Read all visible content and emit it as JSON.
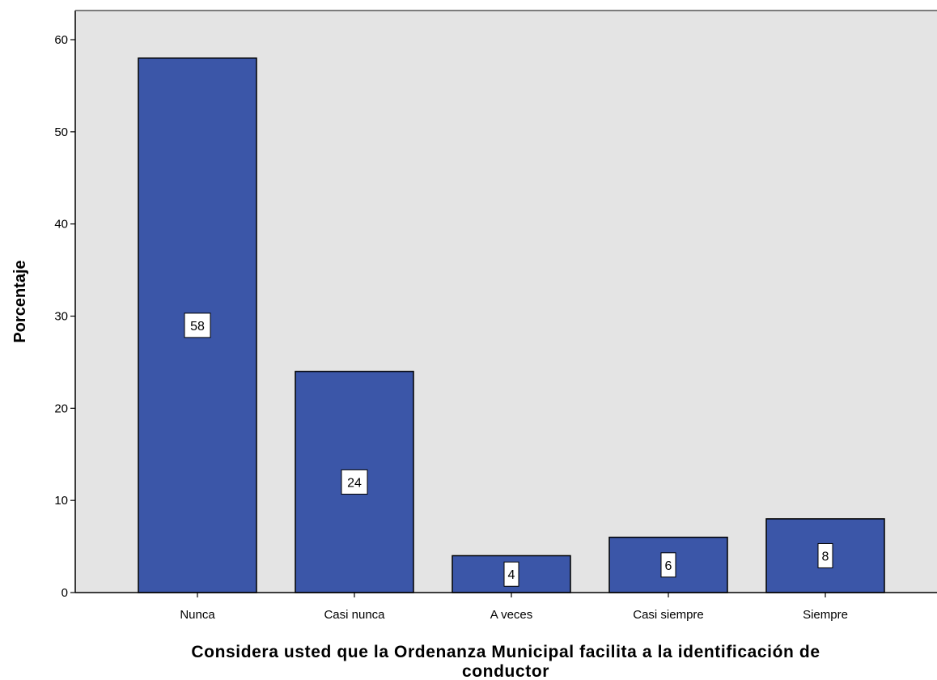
{
  "chart_data": {
    "type": "bar",
    "categories": [
      "Nunca",
      "Casi nunca",
      "A veces",
      "Casi siempre",
      "Siempre"
    ],
    "values": [
      58,
      24,
      4,
      6,
      8
    ],
    "data_labels": [
      "58",
      "24",
      "4",
      "6",
      "8"
    ],
    "title": "",
    "xlabel_lines": [
      "Considera usted que la  Ordenanza Municipal facilita a la identificación de",
      "conductor"
    ],
    "ylabel": "Porcentaje",
    "ylim": [
      0,
      60
    ],
    "yticks": [
      0,
      10,
      20,
      30,
      40,
      50,
      60
    ],
    "grid": false,
    "legend": "none",
    "colors": {
      "bar_fill": "#3B56A8",
      "bar_stroke": "#000000",
      "plot_background": "#E4E4E4",
      "label_box_fill": "#FFFFFF"
    }
  }
}
